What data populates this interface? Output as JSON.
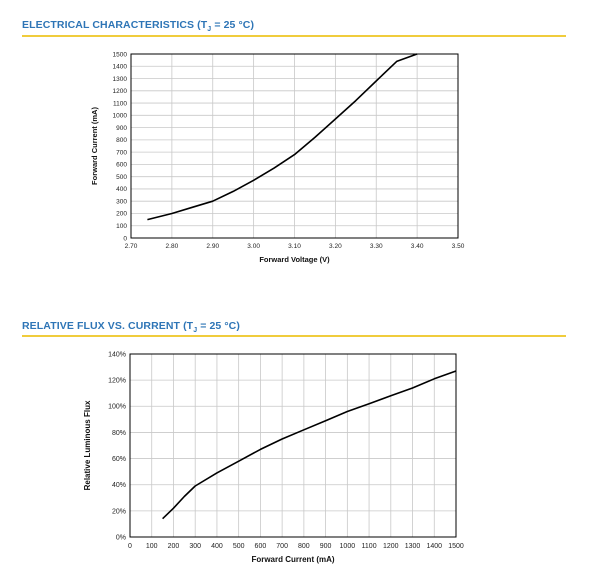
{
  "sections": [
    {
      "title_prefix": "ELECTRICAL CHARACTERISTICS (T",
      "title_sub": "J",
      "title_suffix": " = 25 °C)"
    },
    {
      "title_prefix": "RELATIVE FLUX VS. CURRENT (T",
      "title_sub": "J",
      "title_suffix": " = 25 °C)"
    }
  ],
  "colors": {
    "title": "#2e75b6",
    "rule": "#f0cc3c",
    "grid": "#c8c8c8",
    "line": "#000000"
  },
  "chart_data": [
    {
      "type": "line",
      "xlabel": "Forward Voltage (V)",
      "ylabel": "Forward Current (mA)",
      "xlim": [
        2.7,
        3.5
      ],
      "ylim": [
        0,
        1500
      ],
      "x_ticks": [
        2.7,
        2.8,
        2.9,
        3.0,
        3.1,
        3.2,
        3.3,
        3.4,
        3.5
      ],
      "x_tick_labels": [
        "2.70",
        "2.80",
        "2.90",
        "3.00",
        "3.10",
        "3.20",
        "3.30",
        "3.40",
        "3.50"
      ],
      "y_ticks": [
        0,
        100,
        200,
        300,
        400,
        500,
        600,
        700,
        800,
        900,
        1000,
        1100,
        1200,
        1300,
        1400,
        1500
      ],
      "y_tick_labels": [
        "0",
        "100",
        "200",
        "300",
        "400",
        "500",
        "600",
        "700",
        "800",
        "900",
        "1000",
        "1100",
        "1200",
        "1300",
        "1400",
        "1500"
      ],
      "grid": true,
      "series": [
        {
          "x": [
            2.74,
            2.8,
            2.85,
            2.9,
            2.95,
            3.0,
            3.05,
            3.1,
            3.15,
            3.2,
            3.25,
            3.3,
            3.35,
            3.4
          ],
          "y": [
            150,
            200,
            250,
            300,
            380,
            470,
            570,
            680,
            820,
            970,
            1120,
            1280,
            1440,
            1500
          ]
        }
      ]
    },
    {
      "type": "line",
      "xlabel": "Forward Current (mA)",
      "ylabel": "Relative Luminous Flux",
      "xlim": [
        0,
        1500
      ],
      "ylim": [
        0,
        140
      ],
      "x_ticks": [
        0,
        100,
        200,
        300,
        400,
        500,
        600,
        700,
        800,
        900,
        1000,
        1100,
        1200,
        1300,
        1400,
        1500
      ],
      "x_tick_labels": [
        "0",
        "100",
        "200",
        "300",
        "400",
        "500",
        "600",
        "700",
        "800",
        "900",
        "1000",
        "1100",
        "1200",
        "1300",
        "1400",
        "1500"
      ],
      "y_ticks": [
        0,
        20,
        40,
        60,
        80,
        100,
        120,
        140
      ],
      "y_tick_labels": [
        "0%",
        "20%",
        "40%",
        "60%",
        "80%",
        "100%",
        "120%",
        "140%"
      ],
      "grid": true,
      "series": [
        {
          "x": [
            150,
            200,
            250,
            300,
            400,
            500,
            600,
            700,
            800,
            900,
            1000,
            1050,
            1100,
            1200,
            1300,
            1400,
            1500
          ],
          "y": [
            14,
            22,
            31,
            39,
            49,
            58,
            67,
            75,
            82,
            89,
            96,
            99,
            102,
            108,
            114,
            121,
            127
          ]
        }
      ]
    }
  ]
}
